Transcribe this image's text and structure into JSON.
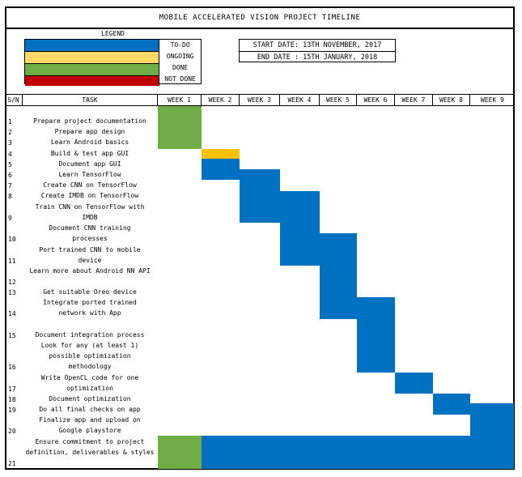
{
  "title": "MOBILE ACCELERATED VISION PROJECT TIMELINE",
  "legend": {
    "heading": "LEGEND",
    "items": [
      {
        "label": "TO-DO",
        "color": "#0070c0"
      },
      {
        "label": "ONGOING",
        "color": "#ffd966"
      },
      {
        "label": "DONE",
        "color": "#70ad47"
      },
      {
        "label": "NOT DONE",
        "color": "#c00000"
      }
    ]
  },
  "dates": {
    "start": "START DATE: 13TH NOVEMBER, 2017",
    "end": "END DATE : 15TH JANUARY, 2018"
  },
  "columns": {
    "sn": "S/N",
    "task": "TASK",
    "weeks": [
      "WEEK 1",
      "WEEK 2",
      "WEEK 3",
      "WEEK 4",
      "WEEK 5",
      "WEEK 6",
      "WEEK 7",
      "WEEK 8",
      "WEEK 9"
    ]
  },
  "status_colors": {
    "done": "#70ad47",
    "ongoing": "#ffc000",
    "todo": "#0070c0"
  },
  "tasks": [
    {
      "sn": "1",
      "name": "Prepare project documentation"
    },
    {
      "sn": "2",
      "name": "Prepare app design"
    },
    {
      "sn": "3",
      "name": "Learn Android basics"
    },
    {
      "sn": "4",
      "name": "Build & test app GUI"
    },
    {
      "sn": "5",
      "name": "Document app GUI"
    },
    {
      "sn": "6",
      "name": "Learn TensorFlow"
    },
    {
      "sn": "7",
      "name": "Create CNN on TensorFlow"
    },
    {
      "sn": "8",
      "name": "Create IMDB on TensorFlow"
    },
    {
      "sn": "9",
      "name": "Train CNN on TensorFlow with IMDB"
    },
    {
      "sn": "10",
      "name": "Document CNN training processes"
    },
    {
      "sn": "11",
      "name": "Port trained CNN to mobile device"
    },
    {
      "sn": "12",
      "name": "Learn more about Android NN API"
    },
    {
      "sn": "13",
      "name": "Get suitable Oreo device"
    },
    {
      "sn": "14",
      "name": "Integrate ported trained network with App"
    },
    {
      "sn": "15",
      "name": "Document integration process"
    },
    {
      "sn": "16",
      "name": "Look for any (at least 1) possible optimization methodology"
    },
    {
      "sn": "17",
      "name": "Write OpenCL code for one optimization"
    },
    {
      "sn": "18",
      "name": "Document optimization"
    },
    {
      "sn": "19",
      "name": "Do all final checks on app"
    },
    {
      "sn": "20",
      "name": "Finalize app and upload on Google playstore"
    },
    {
      "sn": "21",
      "name": "Ensure commitment to project definition, deliverables & styles"
    }
  ],
  "schedule": [
    {
      "task": "1-3",
      "status": "done",
      "weeks": [
        1
      ]
    },
    {
      "task": "4",
      "status": "ongoing",
      "weeks": [
        2
      ]
    },
    {
      "task": "5-6",
      "status": "todo",
      "weeks": [
        2
      ]
    },
    {
      "task": "6-9",
      "status": "todo",
      "weeks": [
        3
      ]
    },
    {
      "task": "8-11",
      "status": "todo",
      "weeks": [
        4
      ]
    },
    {
      "task": "10-14",
      "status": "todo",
      "weeks": [
        5
      ]
    },
    {
      "task": "13-16",
      "status": "todo",
      "weeks": [
        6
      ]
    },
    {
      "task": "17",
      "status": "todo",
      "weeks": [
        7
      ]
    },
    {
      "task": "18-19",
      "status": "todo",
      "weeks": [
        8
      ]
    },
    {
      "task": "19-21",
      "status": "todo",
      "weeks": [
        9
      ]
    },
    {
      "task": "21",
      "status": "done",
      "weeks": [
        1
      ]
    },
    {
      "task": "21",
      "status": "todo",
      "weeks": [
        2,
        3,
        4,
        5,
        6,
        7,
        8
      ]
    }
  ]
}
